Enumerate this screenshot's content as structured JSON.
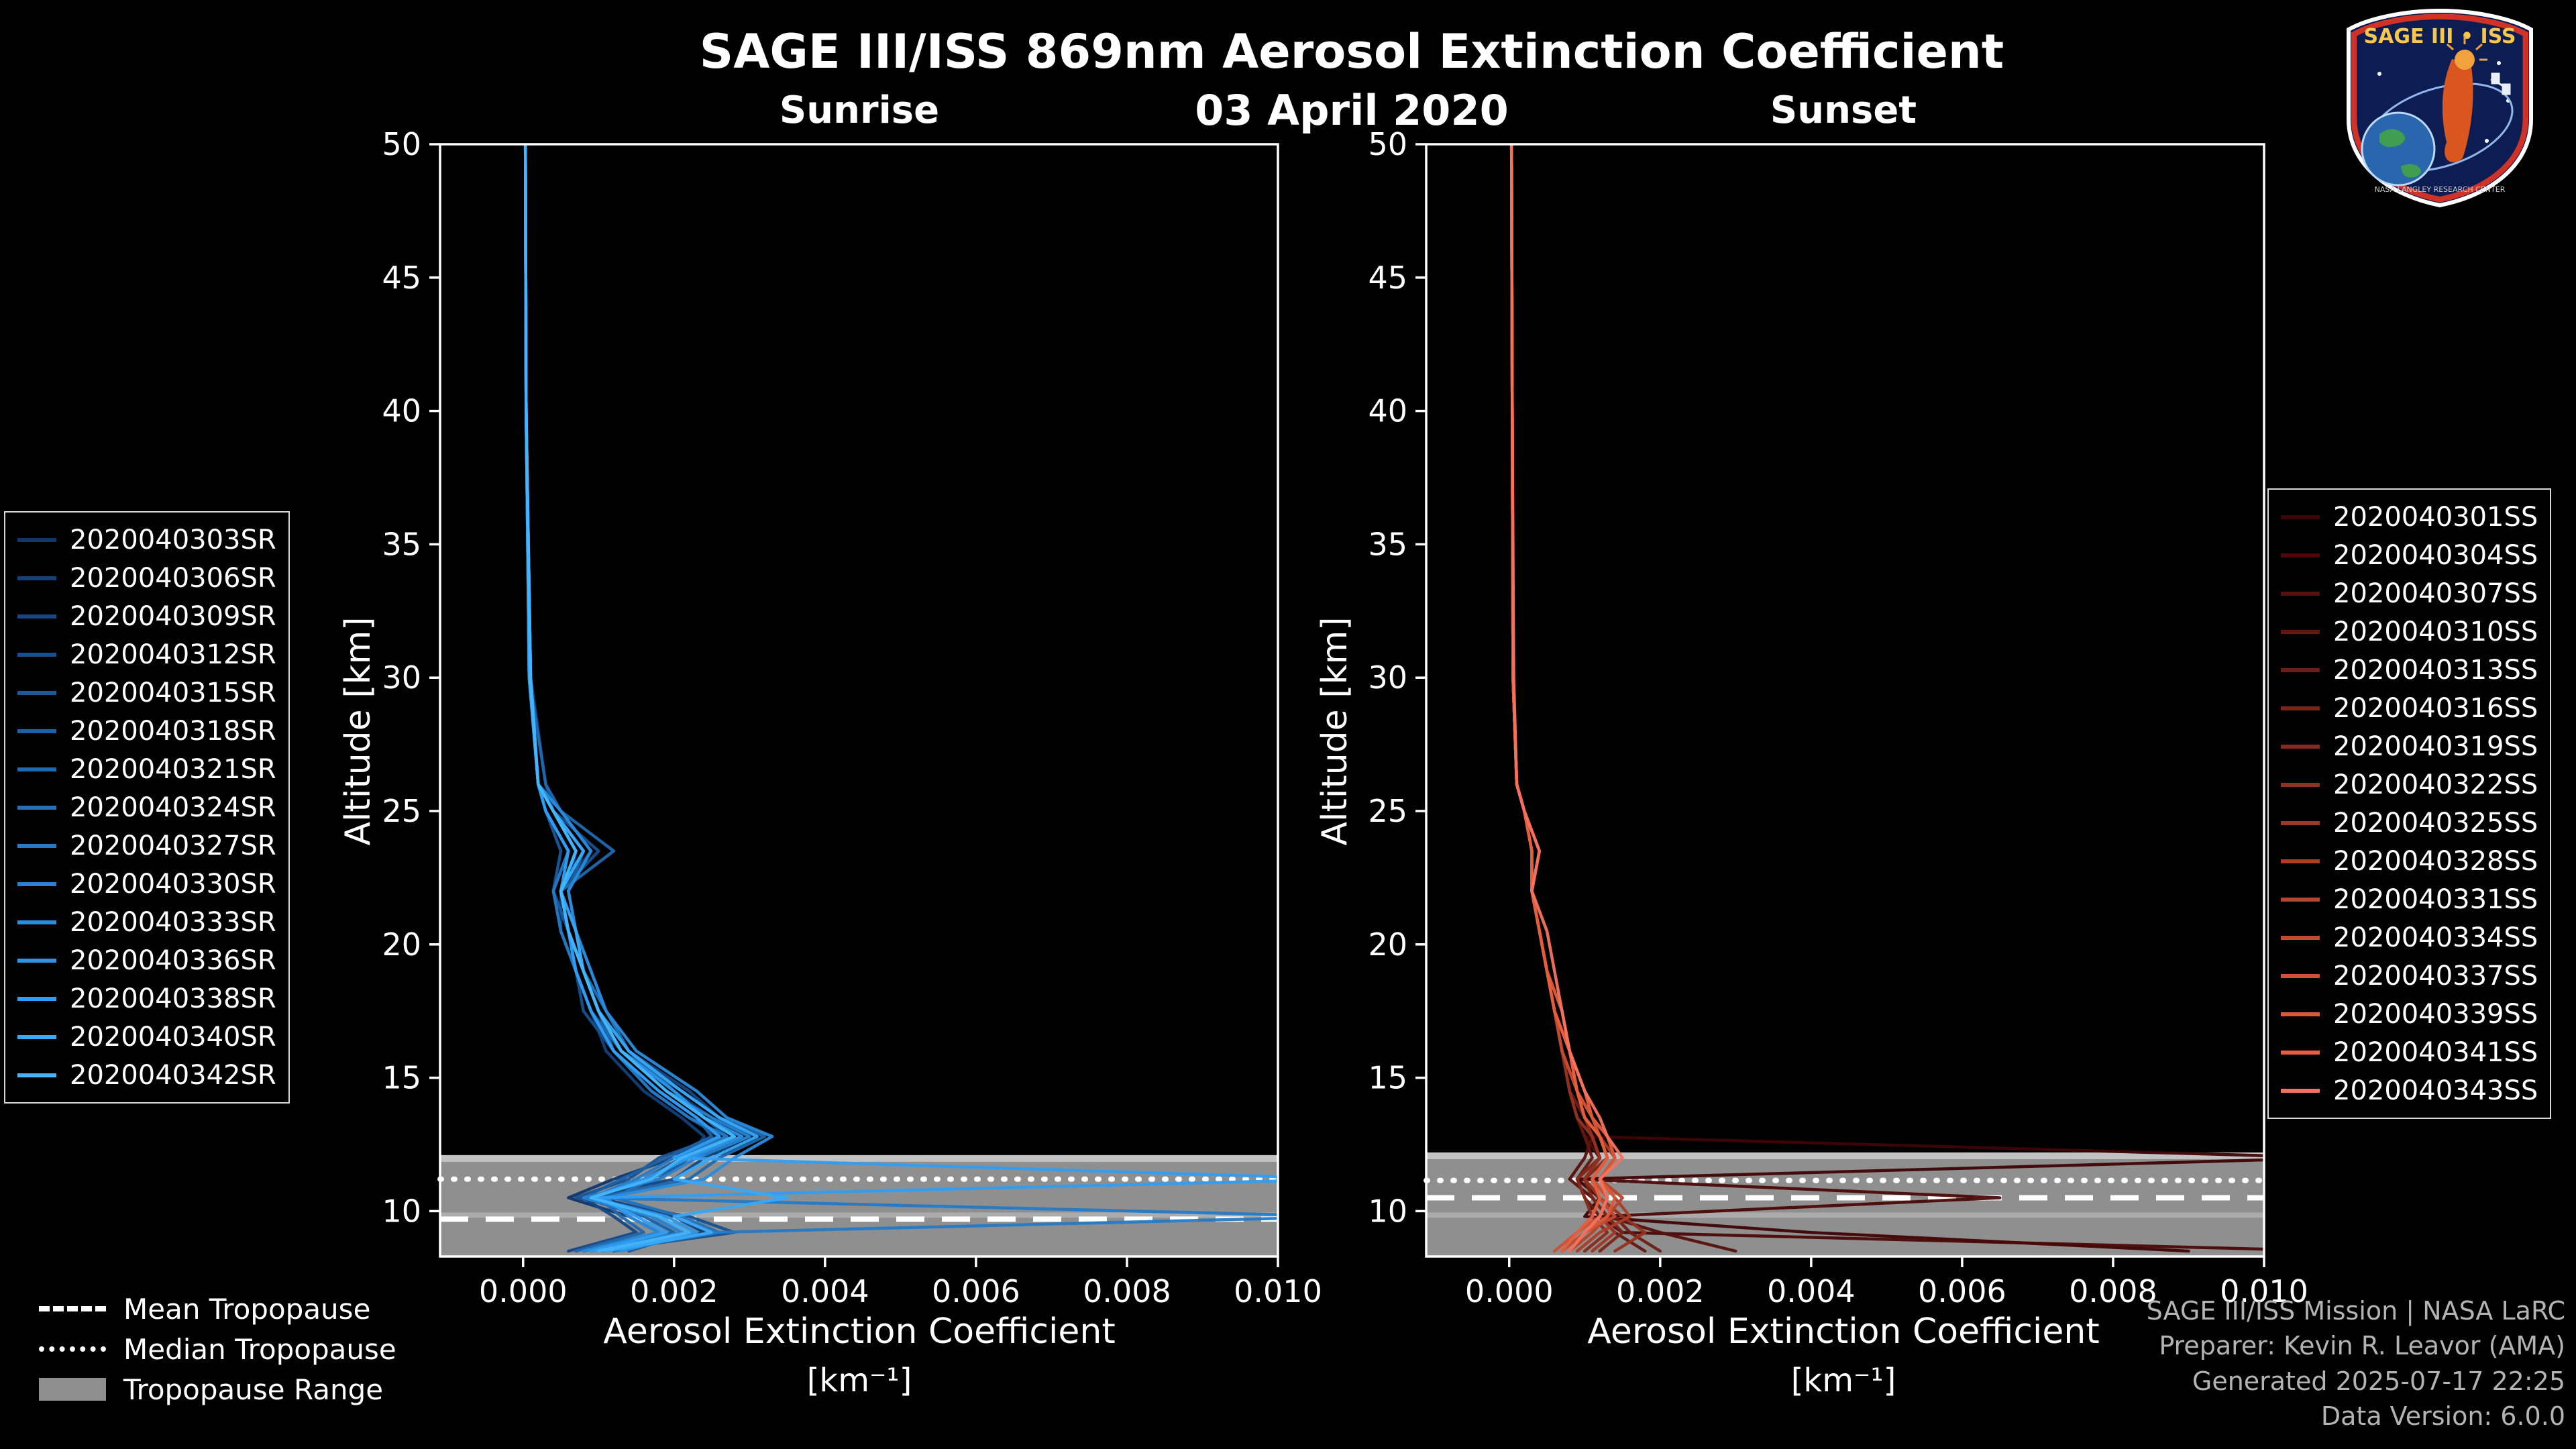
{
  "title": "SAGE III/ISS 869nm Aerosol Extinction Coefficient",
  "date": "03 April 2020",
  "logo": {
    "title": "SAGE III • ISS",
    "footer": "NASA LANGLEY RESEARCH CENTER"
  },
  "credits": {
    "line1": "SAGE III/ISS Mission | NASA LaRC",
    "line2": "Preparer: Kevin R. Leavor (AMA)",
    "line3": "Generated 2025-07-17 22:25",
    "line4": "Data Version: 6.0.0"
  },
  "tropopause_legend": {
    "mean": "Mean Tropopause",
    "median": "Median Tropopause",
    "range": "Tropopause Range"
  },
  "chart_data": {
    "type": "line",
    "xlabel": "Aerosol Extinction Coefficient",
    "xlabel_units": "[km⁻¹]",
    "ylabel": "Altitude [km]",
    "xlim": [
      -0.0011,
      0.01
    ],
    "ylim": [
      8.3,
      50
    ],
    "xtick_values": [
      0,
      0.002,
      0.004,
      0.006,
      0.008,
      0.01
    ],
    "xtick_labels": [
      "0.000",
      "0.002",
      "0.004",
      "0.006",
      "0.008",
      "0.010"
    ],
    "ytick_values": [
      10,
      15,
      20,
      25,
      30,
      35,
      40,
      45,
      50
    ],
    "ytick_labels": [
      "10",
      "15",
      "20",
      "25",
      "30",
      "35",
      "40",
      "45",
      "50"
    ],
    "value_scale": 0.0001,
    "altitudes": [
      50,
      40,
      30,
      26,
      25,
      23.5,
      22,
      20.5,
      19,
      17.5,
      16,
      14.5,
      13.5,
      12.8,
      12,
      11.2,
      10.5,
      9.8,
      9.2,
      8.5
    ],
    "tropopause_colors": {
      "band": "#8f8f8f",
      "band_edge": "#c2c2c2",
      "lines": "#ffffff"
    },
    "panels": [
      {
        "name": "Sunrise",
        "tropopause": {
          "mean": 9.7,
          "median": 11.2,
          "range": [
            8.3,
            12.1
          ]
        },
        "series": [
          {
            "label": "2020040303SR",
            "color": "#10386e",
            "values": [
              0.3,
              0.4,
              0.8,
              2,
              3,
              6,
              4,
              6,
              8,
              10,
              13,
              20,
              25,
              28,
              20,
              12,
              6,
              14,
              18,
              8
            ]
          },
          {
            "label": "2020040306SR",
            "color": "#124079",
            "values": [
              0.3,
              0.4,
              0.9,
              2,
              5,
              9,
              5,
              5,
              7,
              9,
              11,
              16,
              21,
              24,
              22,
              18,
              10,
              20,
              24,
              12
            ]
          },
          {
            "label": "2020040309SR",
            "color": "#154884",
            "values": [
              0.3,
              0.4,
              1,
              3,
              4,
              7,
              6,
              7,
              9,
              11,
              14,
              22,
              26,
              30,
              24,
              20,
              8,
              12,
              15,
              6
            ]
          },
          {
            "label": "2020040312SR",
            "color": "#17508f",
            "values": [
              0.3,
              0.4,
              0.8,
              2,
              4,
              10,
              5,
              6,
              7,
              8,
              12,
              17,
              22,
              26,
              18,
              14,
              7,
              22,
              28,
              10
            ]
          },
          {
            "label": "2020040315SR",
            "color": "#1a589a",
            "values": [
              0.3,
              0.4,
              0.9,
              2,
              3,
              5,
              4,
              6,
              8,
              10,
              13,
              19,
              24,
              27,
              21,
              16,
              9,
              18,
              22,
              14
            ]
          },
          {
            "label": "2020040318SR",
            "color": "#1c61a5",
            "values": [
              0.3,
              0.4,
              1,
              2,
              4,
              8,
              6,
              7,
              8,
              10,
              12,
              18,
              23,
              25,
              19,
              13,
              8,
              16,
              20,
              9
            ]
          },
          {
            "label": "2020040321SR",
            "color": "#1f69b0",
            "values": [
              0.3,
              0.4,
              0.8,
              3,
              5,
              12,
              5,
              6,
              7,
              9,
              13,
              21,
              26,
              32,
              26,
              22,
              10,
              13,
              16,
              7
            ]
          },
          {
            "label": "2020040324SR",
            "color": "#2272bb",
            "values": [
              0.3,
              0.4,
              0.9,
              2,
              4,
              7,
              5,
              6,
              8,
              11,
              14,
              20,
              24,
              28,
              22,
              17,
              12,
              21,
              26,
              11
            ]
          },
          {
            "label": "2020040327SR",
            "color": "#247ac6",
            "values": [
              0.3,
              0.4,
              1,
              2,
              3,
              6,
              4,
              5,
              7,
              9,
              12,
              17,
              22,
              27,
              20,
              15,
              9,
              110,
              25,
              12
            ]
          },
          {
            "label": "2020040330SR",
            "color": "#2783d1",
            "values": [
              0.3,
              0.4,
              0.8,
              2,
              4,
              8,
              5,
              6,
              8,
              10,
              13,
              19,
              25,
              30,
              23,
              18,
              8,
              17,
              21,
              10
            ]
          },
          {
            "label": "2020040333SR",
            "color": "#2a8cdc",
            "values": [
              0.3,
              0.4,
              0.9,
              2,
              5,
              9,
              6,
              7,
              9,
              11,
              15,
              23,
              27,
              33,
              28,
              24,
              11,
              14,
              18,
              8
            ]
          },
          {
            "label": "2020040336SR",
            "color": "#2c95e7",
            "values": [
              0.3,
              0.4,
              1,
              2,
              4,
              7,
              5,
              6,
              8,
              10,
              13,
              20,
              24,
              29,
              22,
              16,
              9,
              19,
              23,
              13
            ]
          },
          {
            "label": "2020040338SR",
            "color": "#2f9ef2",
            "values": [
              0.3,
              0.4,
              0.8,
              2,
              3,
              6,
              5,
              6,
              7,
              9,
              12,
              18,
              23,
              26,
              20,
              110,
              10,
              15,
              19,
              9
            ]
          },
          {
            "label": "2020040340SR",
            "color": "#38a9f7",
            "values": [
              0.3,
              0.4,
              0.9,
              2,
              4,
              8,
              5,
              7,
              8,
              10,
              14,
              21,
              26,
              31,
              25,
              20,
              35,
              20,
              25,
              11
            ]
          },
          {
            "label": "2020040342SR",
            "color": "#45b5fb",
            "values": [
              0.3,
              0.4,
              1,
              2,
              4,
              7,
              5,
              6,
              8,
              10,
              13,
              19,
              24,
              28,
              21,
              17,
              9,
              18,
              22,
              10
            ]
          }
        ]
      },
      {
        "name": "Sunset",
        "tropopause": {
          "mean": 10.5,
          "median": 11.15,
          "range": [
            8.3,
            12.2
          ]
        },
        "series": [
          {
            "label": "2020040301SS",
            "color": "#3f0404",
            "values": [
              0.3,
              0.4,
              0.5,
              1,
              2,
              3,
              3,
              4,
              5,
              6,
              7,
              8,
              9,
              10,
              110,
              9,
              12,
              10,
              40,
              90
            ]
          },
          {
            "label": "2020040304SS",
            "color": "#4b0a08",
            "values": [
              0.3,
              0.4,
              0.5,
              1,
              2,
              3,
              3,
              4,
              5,
              6,
              7,
              8,
              9,
              10,
              12,
              9,
              65,
              12,
              15,
              110
            ]
          },
          {
            "label": "2020040307SS",
            "color": "#57100c",
            "values": [
              0.3,
              0.4,
              0.5,
              1,
              2,
              3,
              3,
              4,
              5,
              6,
              7,
              9,
              10,
              11,
              10,
              8,
              11,
              13,
              20,
              30
            ]
          },
          {
            "label": "2020040310SS",
            "color": "#631710",
            "values": [
              0.3,
              0.4,
              0.5,
              1,
              2,
              3,
              3,
              4,
              5,
              6,
              7,
              8,
              9,
              10,
              11,
              9,
              10,
              12,
              14,
              18
            ]
          },
          {
            "label": "2020040313SS",
            "color": "#6f1d14",
            "values": [
              0.3,
              0.4,
              0.5,
              1,
              2,
              3,
              3,
              4,
              5,
              6,
              7,
              8,
              10,
              11,
              12,
              10,
              12,
              14,
              16,
              20
            ]
          },
          {
            "label": "2020040316SS",
            "color": "#7b2418",
            "values": [
              0.3,
              0.4,
              0.5,
              1,
              2,
              3,
              3,
              4,
              5,
              6,
              8,
              9,
              10,
              12,
              13,
              10,
              11,
              13,
              15,
              12
            ]
          },
          {
            "label": "2020040319SS",
            "color": "#872a1c",
            "values": [
              0.3,
              0.4,
              0.5,
              1,
              2,
              4,
              3,
              4,
              5,
              6,
              7,
              9,
              10,
              11,
              12,
              9,
              10,
              11,
              13,
              10
            ]
          },
          {
            "label": "2020040322SS",
            "color": "#933120",
            "values": [
              0.3,
              0.4,
              0.5,
              1,
              2,
              3,
              3,
              4,
              5,
              6,
              7,
              8,
              9,
              11,
              12,
              10,
              12,
              15,
              18,
              14
            ]
          },
          {
            "label": "2020040325SS",
            "color": "#9f3724",
            "values": [
              0.3,
              0.4,
              0.5,
              1,
              2,
              3,
              3,
              4,
              5,
              6,
              7,
              9,
              10,
              12,
              13,
              11,
              13,
              12,
              14,
              11
            ]
          },
          {
            "label": "2020040328SS",
            "color": "#ab3e28",
            "values": [
              0.3,
              0.4,
              0.5,
              1,
              2,
              3,
              3,
              4,
              5,
              6,
              8,
              9,
              11,
              12,
              14,
              12,
              14,
              16,
              12,
              9
            ]
          },
          {
            "label": "2020040331SS",
            "color": "#b7442c",
            "values": [
              0.3,
              0.4,
              0.5,
              1,
              2,
              3,
              3,
              4,
              5,
              7,
              8,
              10,
              11,
              13,
              14,
              12,
              15,
              13,
              11,
              8
            ]
          },
          {
            "label": "2020040334SS",
            "color": "#c34b30",
            "values": [
              0.3,
              0.4,
              0.5,
              1,
              2,
              3,
              3,
              4,
              5,
              6,
              7,
              9,
              10,
              12,
              13,
              11,
              12,
              14,
              10,
              7
            ]
          },
          {
            "label": "2020040337SS",
            "color": "#cf5134",
            "values": [
              0.3,
              0.4,
              0.5,
              1,
              2,
              3,
              3,
              4,
              5,
              6,
              8,
              9,
              11,
              12,
              13,
              11,
              13,
              12,
              9,
              6
            ]
          },
          {
            "label": "2020040339SS",
            "color": "#db5838",
            "values": [
              0.3,
              0.4,
              0.5,
              1,
              2,
              4,
              3,
              4,
              5,
              7,
              8,
              10,
              11,
              13,
              14,
              12,
              14,
              13,
              10,
              8
            ]
          },
          {
            "label": "2020040341SS",
            "color": "#e75e3c",
            "values": [
              0.3,
              0.4,
              0.5,
              1,
              2,
              3,
              3,
              4,
              5,
              6,
              8,
              9,
              10,
              12,
              13,
              11,
              12,
              11,
              9,
              7
            ]
          },
          {
            "label": "2020040343SS",
            "color": "#f4735f",
            "values": [
              0.3,
              0.4,
              0.6,
              1,
              2,
              4,
              3,
              5,
              6,
              7,
              8,
              10,
              12,
              13,
              15,
              12,
              13,
              12,
              10,
              8
            ]
          }
        ]
      }
    ]
  }
}
